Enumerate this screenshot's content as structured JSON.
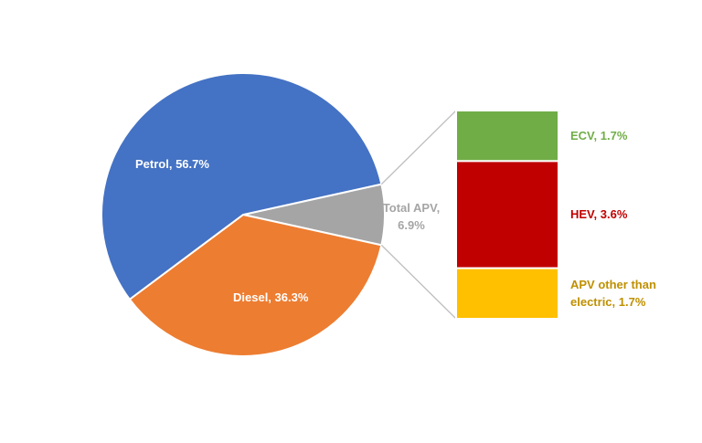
{
  "chart_data": {
    "type": "pie-of-bar",
    "values": [
      56.7,
      36.3,
      6.9
    ],
    "value_labels": [
      "Petrol, 56.7%",
      "Diesel, 36.3%",
      "Total APV, 6.9%"
    ],
    "colors": [
      "#4472c4",
      "#ed7d31",
      "#a5a5a5"
    ],
    "breakout": {
      "values": [
        1.7,
        3.6,
        1.7
      ],
      "value_labels": [
        "ECV, 1.7%",
        "HEV, 3.6%",
        "APV other than electric, 1.7%"
      ],
      "colors": [
        "#70ad47",
        "#c00000",
        "#ffc000"
      ],
      "label_colors": [
        "#70ad47",
        "#c00000",
        "#bf9000"
      ]
    }
  }
}
